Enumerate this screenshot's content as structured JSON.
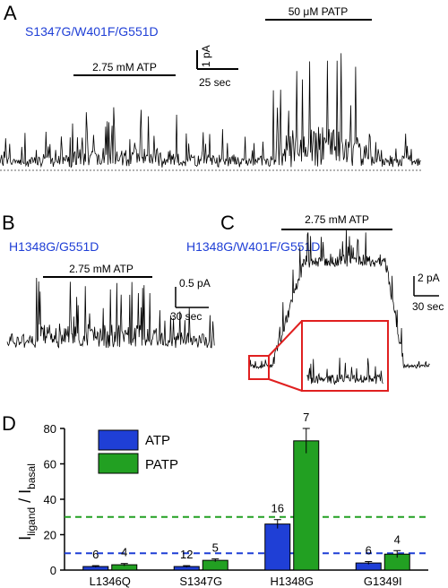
{
  "panels": {
    "A": {
      "letter": "A",
      "construct": "S1347G/W401F/G551D",
      "atp_label": "2.75 mM ATP",
      "patp_label": "50 μM PATP",
      "scale_current": "1 pA",
      "scale_time": "25 sec"
    },
    "B": {
      "letter": "B",
      "construct": "H1348G/G551D",
      "atp_label": "2.75 mM ATP",
      "scale_current": "0.5 pA",
      "scale_time": "30 sec"
    },
    "C": {
      "letter": "C",
      "construct": "H1348G/W401F/G551D",
      "atp_label": "2.75 mM ATP",
      "scale_current": "2 pA",
      "scale_time": "30 sec"
    },
    "D": {
      "letter": "D"
    }
  },
  "colors": {
    "atp": "#1f3fd6",
    "patp": "#22a022",
    "construct_text": "#1f3fd6",
    "inset_box": "#e02020"
  },
  "chart_data": {
    "type": "bar",
    "ylabel_main": "I",
    "ylabel_sub1": "ligand",
    "ylabel_sep": " / I",
    "ylabel_sub2": "basal",
    "ylim": [
      0,
      80
    ],
    "yticks": [
      "0",
      "20",
      "40",
      "60",
      "80"
    ],
    "ytick_values": [
      0,
      20,
      40,
      60,
      80
    ],
    "categories": [
      "L1346Q",
      "S1347G",
      "H1348G",
      "G1349I"
    ],
    "series": [
      {
        "name": "ATP",
        "values": [
          2,
          2,
          26,
          4
        ],
        "errors": [
          0.5,
          0.5,
          2.5,
          0.8
        ],
        "n": [
          "6",
          "12",
          "16",
          "6"
        ]
      },
      {
        "name": "PATP",
        "values": [
          3,
          5.5,
          73,
          9
        ],
        "errors": [
          0.7,
          0.8,
          7,
          2
        ],
        "n": [
          "4",
          "5",
          "7",
          "4"
        ]
      }
    ],
    "reference_lines": [
      {
        "series": "ATP",
        "value": 9.5
      },
      {
        "series": "PATP",
        "value": 30
      }
    ],
    "legend": "top-left"
  }
}
